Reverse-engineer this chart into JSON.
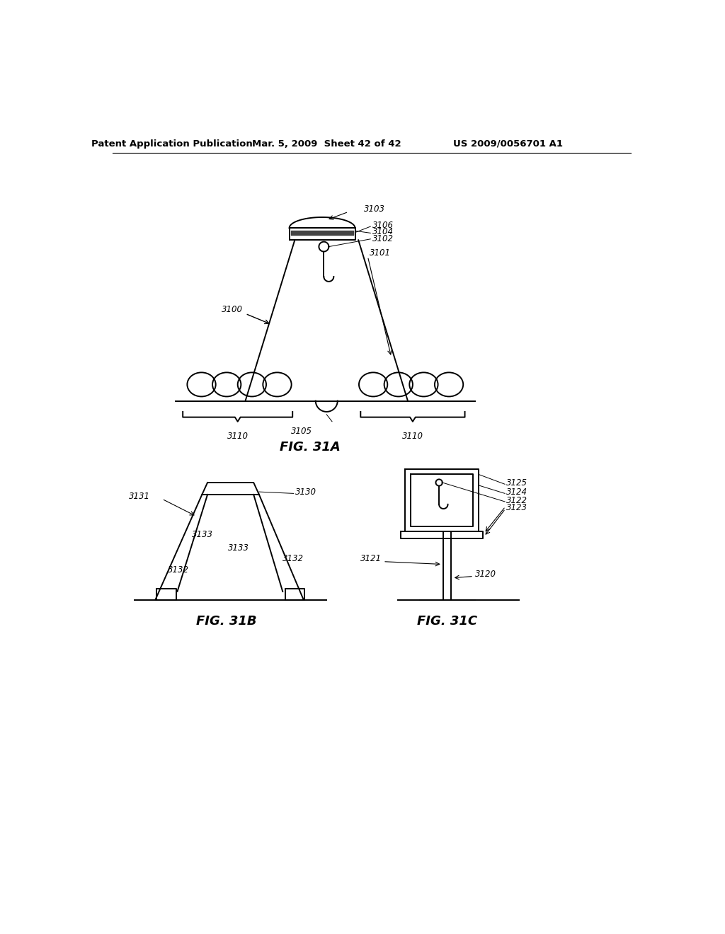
{
  "bg_color": "#ffffff",
  "line_color": "#000000",
  "header_left": "Patent Application Publication",
  "header_mid": "Mar. 5, 2009  Sheet 42 of 42",
  "header_right": "US 2009/0056701 A1",
  "fig31a_title": "FIG. 31A",
  "fig31b_title": "FIG. 31B",
  "fig31c_title": "FIG. 31C",
  "label_fontsize": 8.5,
  "title_fontsize": 13,
  "header_fontsize": 9.5
}
